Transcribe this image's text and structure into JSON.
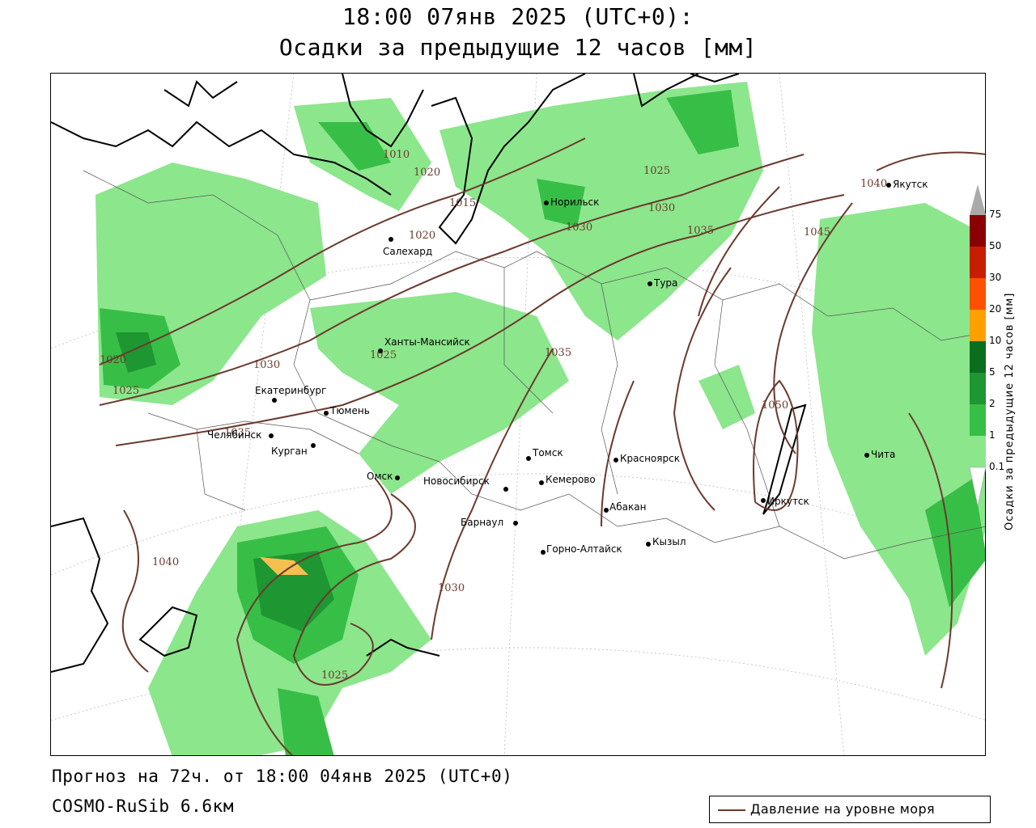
{
  "title": {
    "line1": "18:00 07янв 2025 (UTC+0):",
    "line2": "Осадки за предыдущие 12 часов [мм]"
  },
  "footer": {
    "forecast": "Прогноз на 72ч. от 18:00 04янв 2025 (UTC+0)",
    "model": "COSMO-RuSib 6.6км"
  },
  "legend": {
    "line_label": "Давление на уровне моря",
    "line_color": "#6b3a2e"
  },
  "colorbar": {
    "title": "Осадки за предыдущие 12 часов [мм]",
    "ticks": [
      "75",
      "50",
      "30",
      "20",
      "10",
      "5",
      "2",
      "1",
      "0.1"
    ],
    "colors": [
      "#8b0000",
      "#c81e00",
      "#ff5000",
      "#ffa000",
      "#f5c050",
      "#0a6e1e",
      "#1e9632",
      "#37be46",
      "#8ce68c",
      "#c8f5c8"
    ]
  },
  "map": {
    "cities": [
      {
        "name": "Норильск"
      },
      {
        "name": "Салехард"
      },
      {
        "name": "Тура"
      },
      {
        "name": "Якутск"
      },
      {
        "name": "Ханты-Мансийск"
      },
      {
        "name": "Екатеринбург"
      },
      {
        "name": "Тюмень"
      },
      {
        "name": "Челябинск"
      },
      {
        "name": "Курган"
      },
      {
        "name": "Омск"
      },
      {
        "name": "Новосибирск"
      },
      {
        "name": "Томск"
      },
      {
        "name": "Кемерово"
      },
      {
        "name": "Красноярск"
      },
      {
        "name": "Абакан"
      },
      {
        "name": "Барнаул"
      },
      {
        "name": "Горно-Алтайск"
      },
      {
        "name": "Кызыл"
      },
      {
        "name": "Иркутск"
      },
      {
        "name": "Чита"
      }
    ],
    "isobar_labels": [
      "1010",
      "1015",
      "1020",
      "1025",
      "1030",
      "1035",
      "1040",
      "1045",
      "1050"
    ]
  }
}
